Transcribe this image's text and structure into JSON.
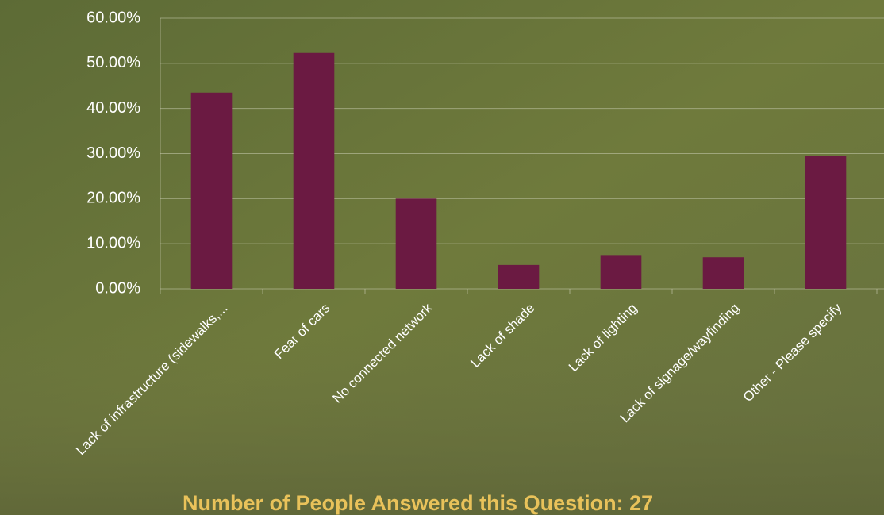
{
  "chart_data": {
    "type": "bar",
    "categories": [
      "Lack of infrastructure (sidewalks,...",
      "Fear of cars",
      "No connected network",
      "Lack of shade",
      "Lack of lighting",
      "Lack of signage/wayfinding",
      "Other - Please specify"
    ],
    "values": [
      43.5,
      52.3,
      20,
      5.3,
      7.5,
      7.0,
      29.5
    ],
    "color": "#6b1a42",
    "ylim": [
      0,
      60
    ],
    "yticks": [
      {
        "value": 0,
        "label": "0.00%"
      },
      {
        "value": 10,
        "label": "10.00%"
      },
      {
        "value": 20,
        "label": "20.00%"
      },
      {
        "value": 30,
        "label": "30.00%"
      },
      {
        "value": 40,
        "label": "40.00%"
      },
      {
        "value": 50,
        "label": "50.00%"
      },
      {
        "value": 60,
        "label": "60.00%"
      }
    ],
    "grid": true,
    "annotation": "Number of People Answered this Question: 27"
  }
}
